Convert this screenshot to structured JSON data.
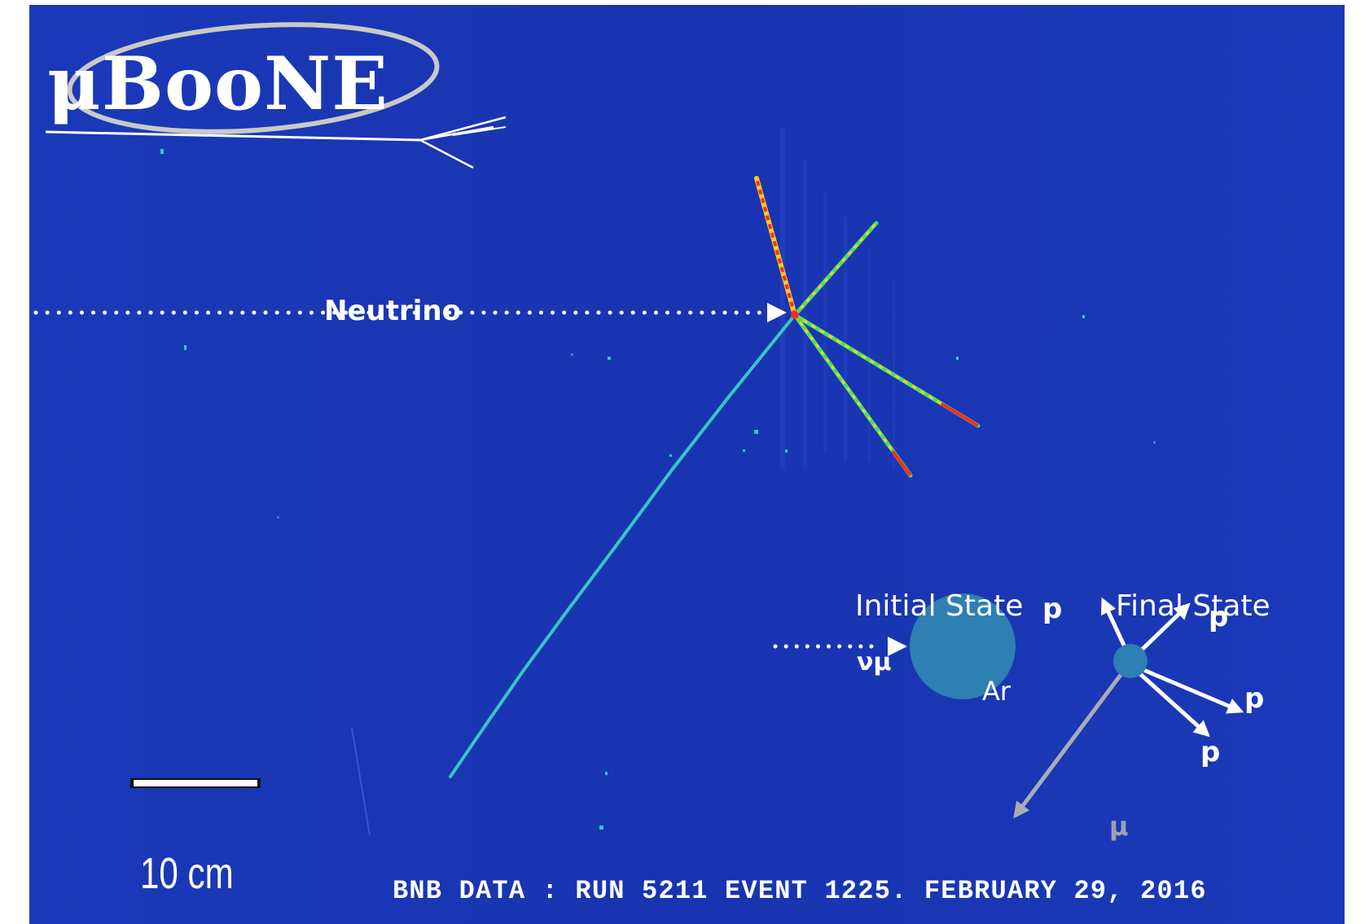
{
  "logo": {
    "text": "μBooNE"
  },
  "annotations": {
    "neutrino_label": "Neutrino",
    "initial_state": {
      "title": "Initial State",
      "beam_label": "νμ",
      "nucleus_label": "Ar"
    },
    "final_state": {
      "title": "Final State",
      "proton_label": "p",
      "muon_label": "μ"
    }
  },
  "scale_bar": {
    "label": "10 cm"
  },
  "caption": "BNB DATA : RUN 5211 EVENT 1225. FEBRUARY 29, 2016",
  "colors": {
    "background": "#1a37b4",
    "track_muon": "#35c6c9",
    "track_proton_high": "#ff2a1a",
    "track_proton_mid": "#ffd21f",
    "track_proton_low": "#4ddc6a",
    "nucleus": "#2e7fb3",
    "muon_arrow": "#a8adb3"
  }
}
